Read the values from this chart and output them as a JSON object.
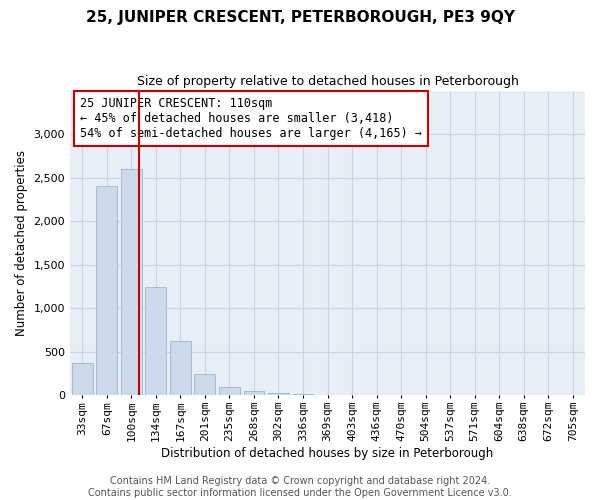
{
  "title": "25, JUNIPER CRESCENT, PETERBOROUGH, PE3 9QY",
  "subtitle": "Size of property relative to detached houses in Peterborough",
  "xlabel": "Distribution of detached houses by size in Peterborough",
  "ylabel": "Number of detached properties",
  "footer_line1": "Contains HM Land Registry data © Crown copyright and database right 2024.",
  "footer_line2": "Contains public sector information licensed under the Open Government Licence v3.0.",
  "annotation_title": "25 JUNIPER CRESCENT: 110sqm",
  "annotation_line1": "← 45% of detached houses are smaller (3,418)",
  "annotation_line2": "54% of semi-detached houses are larger (4,165) →",
  "property_sqm": 110,
  "categories": [
    "33sqm",
    "67sqm",
    "100sqm",
    "134sqm",
    "167sqm",
    "201sqm",
    "235sqm",
    "268sqm",
    "302sqm",
    "336sqm",
    "369sqm",
    "403sqm",
    "436sqm",
    "470sqm",
    "504sqm",
    "537sqm",
    "571sqm",
    "604sqm",
    "638sqm",
    "672sqm",
    "705sqm"
  ],
  "values": [
    370,
    2400,
    2600,
    1240,
    630,
    240,
    100,
    55,
    30,
    15,
    8,
    5,
    3,
    2,
    1,
    1,
    0,
    0,
    0,
    0,
    0
  ],
  "bar_color": "#ccd9ea",
  "bar_edge_color": "#8aafc8",
  "vline_color": "#cc0000",
  "annotation_box_color": "#cc0000",
  "background_color": "#ffffff",
  "plot_bg_color": "#e8eef6",
  "grid_color": "#c8d4e4",
  "ylim": [
    0,
    3500
  ],
  "yticks": [
    0,
    500,
    1000,
    1500,
    2000,
    2500,
    3000
  ],
  "title_fontsize": 11,
  "subtitle_fontsize": 9,
  "xlabel_fontsize": 8.5,
  "ylabel_fontsize": 8.5,
  "tick_fontsize": 8,
  "footer_fontsize": 7,
  "annotation_fontsize": 8.5
}
